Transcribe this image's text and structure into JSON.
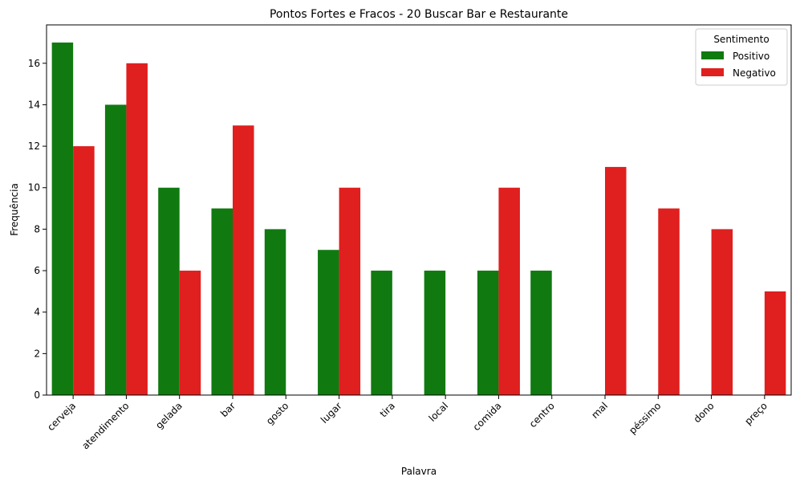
{
  "chart_data": {
    "type": "bar",
    "title": "Pontos Fortes e Fracos - 20 Buscar Bar e Restaurante",
    "xlabel": "Palavra",
    "ylabel": "Frequência",
    "categories": [
      "cerveja",
      "atendimento",
      "gelada",
      "bar",
      "gosto",
      "lugar",
      "tira",
      "local",
      "comida",
      "centro",
      "mal",
      "péssimo",
      "dono",
      "preço"
    ],
    "series": [
      {
        "name": "Positivo",
        "color": "#107a10",
        "values": [
          17,
          14,
          10,
          9,
          8,
          7,
          6,
          6,
          6,
          6,
          null,
          null,
          null,
          null
        ]
      },
      {
        "name": "Negativo",
        "color": "#e01f1f",
        "values": [
          12,
          16,
          6,
          13,
          null,
          10,
          null,
          null,
          10,
          null,
          11,
          9,
          8,
          5
        ]
      }
    ],
    "ylim": [
      0,
      17.85
    ],
    "yticks": [
      0,
      2,
      4,
      6,
      8,
      10,
      12,
      14,
      16
    ],
    "legend": {
      "title": "Sentimento",
      "position": "top-right"
    },
    "grid": false
  }
}
